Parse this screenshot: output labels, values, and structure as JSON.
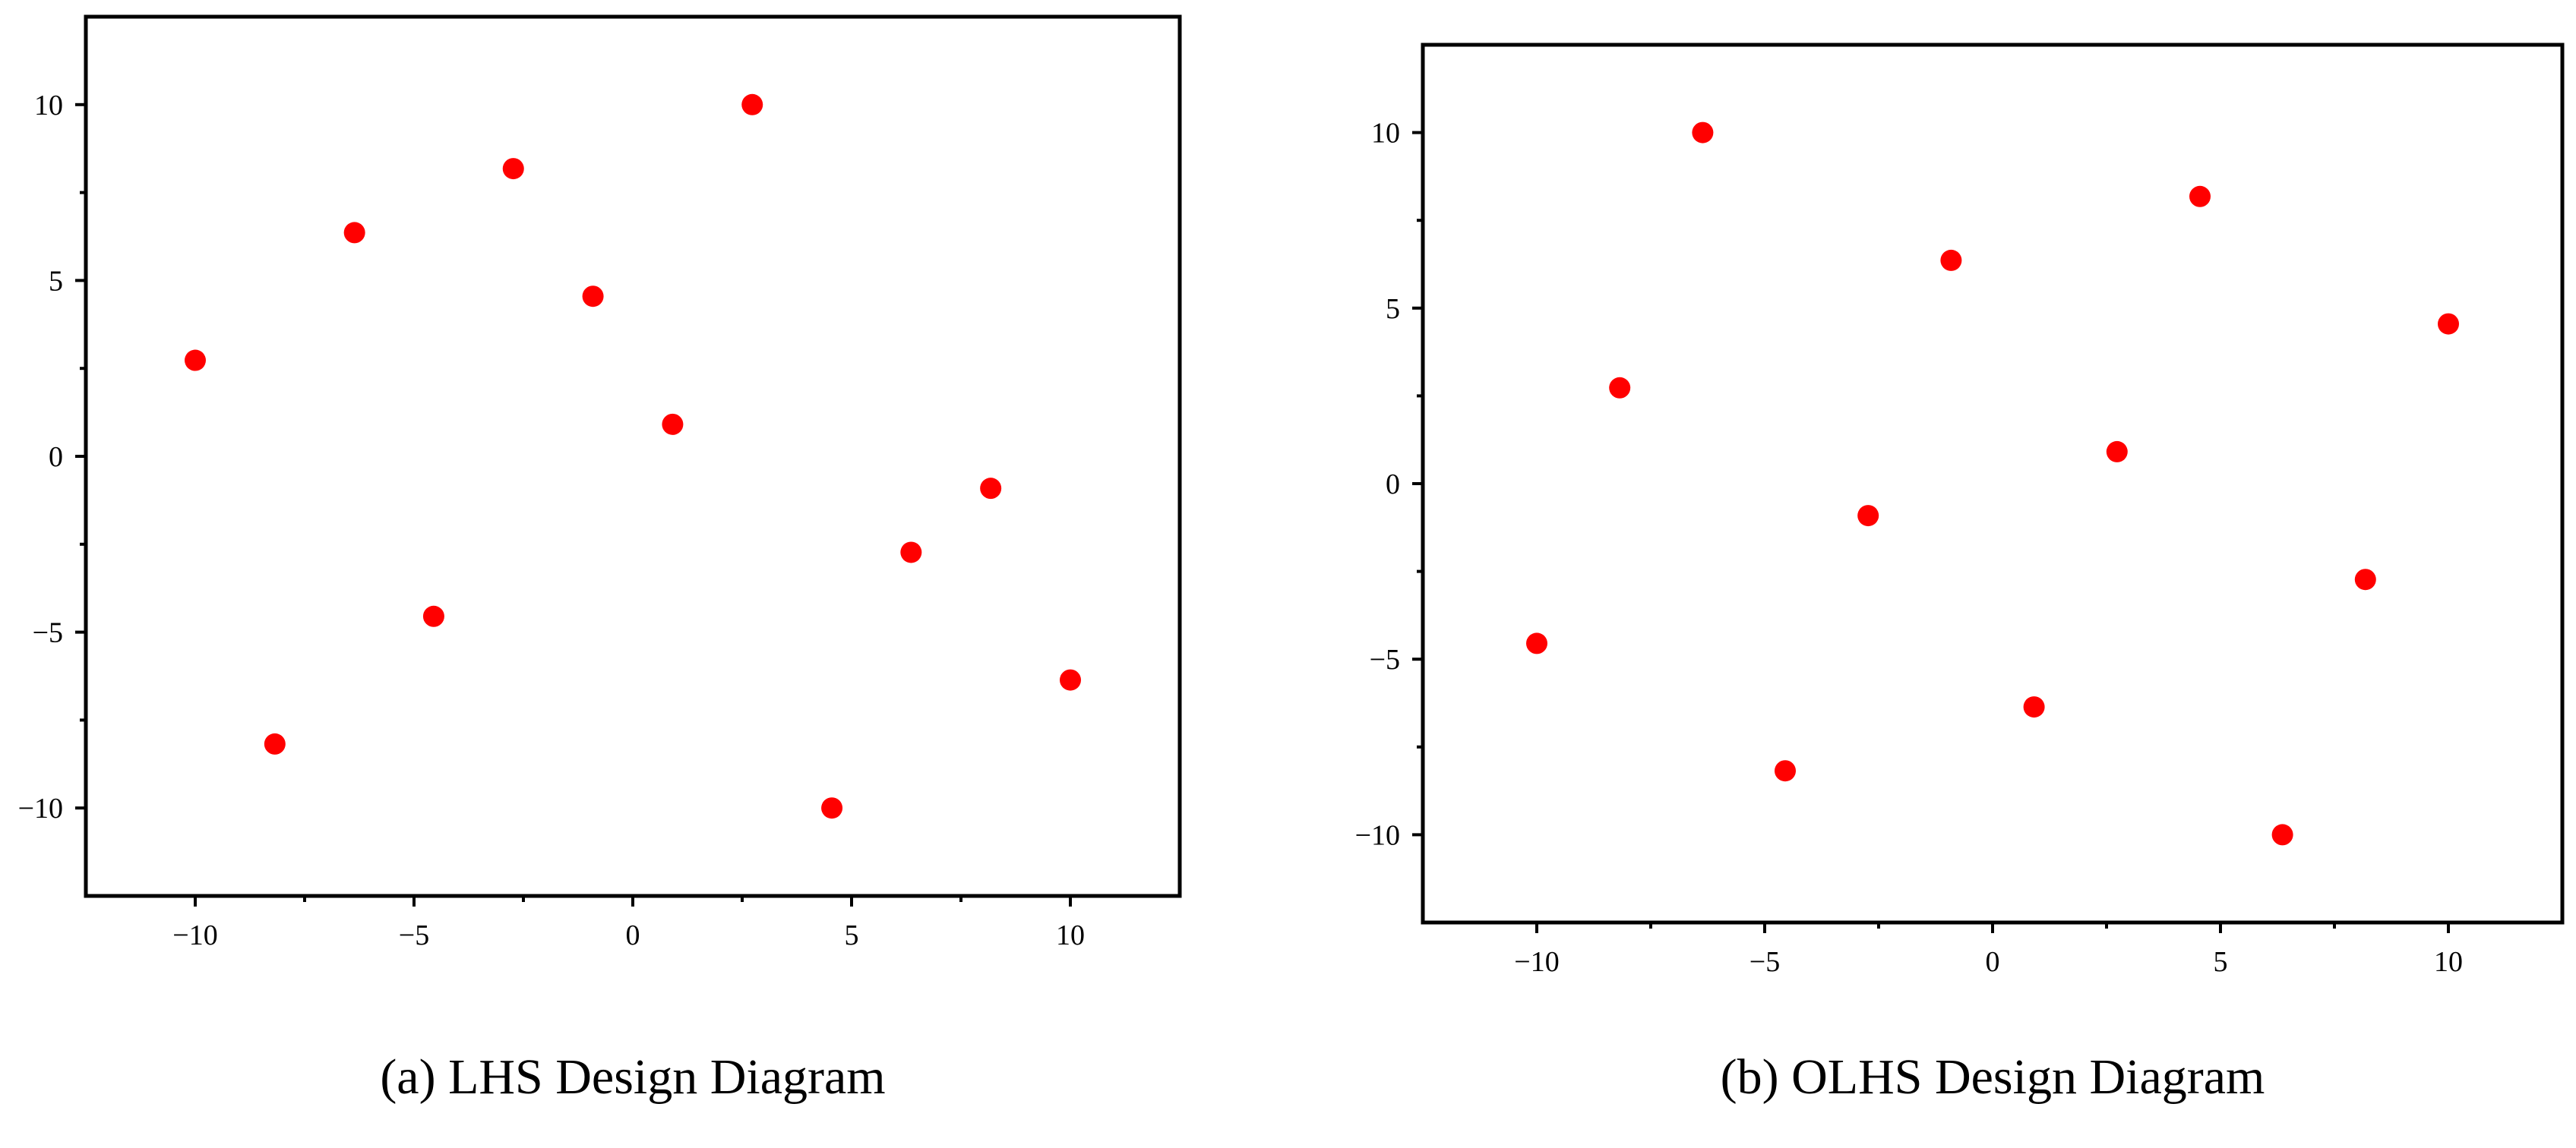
{
  "chart_data": [
    {
      "type": "scatter",
      "caption": "(a) LHS Design Diagram",
      "xlim": [
        -12.5,
        12.5
      ],
      "ylim": [
        -12.5,
        12.5
      ],
      "xticks": [
        -10,
        -5,
        0,
        5,
        10
      ],
      "yticks": [
        -10,
        -5,
        0,
        5,
        10
      ],
      "grid": false,
      "marker_color": "#ff0000",
      "series": [
        {
          "points": [
            {
              "x": -10.0,
              "y": 2.73
            },
            {
              "x": -8.18,
              "y": -8.18
            },
            {
              "x": -6.36,
              "y": 6.36
            },
            {
              "x": -4.55,
              "y": -4.55
            },
            {
              "x": -2.73,
              "y": 8.18
            },
            {
              "x": -0.91,
              "y": 4.55
            },
            {
              "x": 0.91,
              "y": 0.91
            },
            {
              "x": 2.73,
              "y": 10.0
            },
            {
              "x": 4.55,
              "y": -10.0
            },
            {
              "x": 6.36,
              "y": -2.73
            },
            {
              "x": 8.18,
              "y": -0.91
            },
            {
              "x": 10.0,
              "y": -6.36
            }
          ]
        }
      ]
    },
    {
      "type": "scatter",
      "caption": "(b) OLHS Design Diagram",
      "xlim": [
        -12.5,
        12.5
      ],
      "ylim": [
        -12.5,
        12.5
      ],
      "xticks": [
        -10,
        -5,
        0,
        5,
        10
      ],
      "yticks": [
        -10,
        -5,
        0,
        5,
        10
      ],
      "grid": false,
      "marker_color": "#ff0000",
      "series": [
        {
          "points": [
            {
              "x": -10.0,
              "y": -4.55
            },
            {
              "x": -8.18,
              "y": 2.73
            },
            {
              "x": -6.36,
              "y": 10.0
            },
            {
              "x": -4.55,
              "y": -8.18
            },
            {
              "x": -2.73,
              "y": -0.91
            },
            {
              "x": -0.91,
              "y": 6.36
            },
            {
              "x": 0.91,
              "y": -6.36
            },
            {
              "x": 2.73,
              "y": 0.91
            },
            {
              "x": 4.55,
              "y": 8.18
            },
            {
              "x": 6.36,
              "y": -10.0
            },
            {
              "x": 8.18,
              "y": -2.73
            },
            {
              "x": 10.0,
              "y": 4.55
            }
          ]
        }
      ]
    }
  ]
}
